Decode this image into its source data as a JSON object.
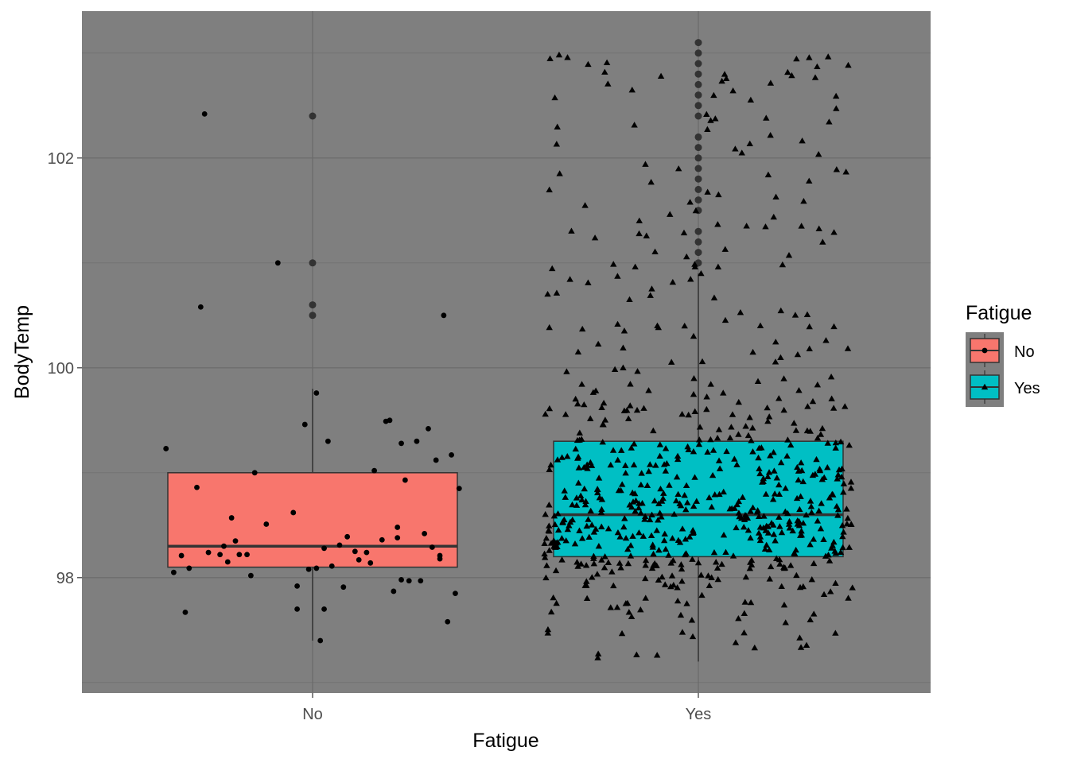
{
  "chart_data": {
    "type": "boxplot",
    "xlabel": "Fatigue",
    "ylabel": "BodyTemp",
    "categories": [
      "No",
      "Yes"
    ],
    "ylim": [
      96.9,
      103.4
    ],
    "yticks": [
      98,
      100,
      102
    ],
    "ytick_labels": [
      "98",
      "100",
      "102"
    ],
    "grid": true,
    "legend": {
      "title": "Fatigue",
      "position": "right",
      "entries": [
        {
          "label": "No",
          "fill": "#F8766D",
          "shape": "circle"
        },
        {
          "label": "Yes",
          "fill": "#00BFC4",
          "shape": "triangle"
        }
      ]
    },
    "colors": {
      "panel": "#7f7f7f",
      "grid_major": "#6a6a6a",
      "grid_minor": "#747474",
      "box_no": "#F8766D",
      "box_yes": "#00BFC4",
      "outline": "#333333",
      "points": "#000000"
    },
    "boxes": [
      {
        "category": "No",
        "lower_whisker": 97.4,
        "q1": 98.1,
        "median": 98.3,
        "q3": 99.0,
        "upper_whisker": 99.8,
        "outliers": [
          100.5,
          100.6,
          101.0,
          102.4
        ]
      },
      {
        "category": "Yes",
        "lower_whisker": 97.2,
        "q1": 98.2,
        "median": 98.6,
        "q3": 99.3,
        "upper_whisker": 100.9,
        "outliers": [
          101.0,
          101.1,
          101.2,
          101.3,
          101.5,
          101.6,
          101.7,
          101.8,
          101.9,
          102.0,
          102.1,
          102.2,
          102.4,
          102.5,
          102.6,
          102.7,
          102.8,
          102.9,
          103.0,
          103.1
        ]
      }
    ],
    "jitter_points": {
      "No": [
        [
          -0.38,
          99.23
        ],
        [
          -0.36,
          98.05
        ],
        [
          -0.34,
          98.21
        ],
        [
          -0.33,
          97.67
        ],
        [
          -0.32,
          98.09
        ],
        [
          -0.3,
          98.86
        ],
        [
          -0.29,
          100.58
        ],
        [
          -0.27,
          98.24
        ],
        [
          -0.24,
          98.22
        ],
        [
          -0.28,
          102.42
        ],
        [
          -0.23,
          98.3
        ],
        [
          -0.22,
          98.15
        ],
        [
          -0.21,
          98.57
        ],
        [
          -0.2,
          98.35
        ],
        [
          -0.19,
          98.22
        ],
        [
          -0.17,
          98.22
        ],
        [
          -0.16,
          98.02
        ],
        [
          -0.15,
          99.0
        ],
        [
          -0.12,
          98.51
        ],
        [
          -0.09,
          101.0
        ],
        [
          -0.05,
          98.62
        ],
        [
          -0.04,
          97.92
        ],
        [
          -0.04,
          97.7
        ],
        [
          -0.02,
          99.46
        ],
        [
          -0.01,
          98.08
        ],
        [
          0.01,
          99.76
        ],
        [
          0.01,
          98.09
        ],
        [
          0.02,
          97.4
        ],
        [
          0.03,
          98.28
        ],
        [
          0.03,
          97.7
        ],
        [
          0.04,
          99.3
        ],
        [
          0.05,
          98.11
        ],
        [
          0.07,
          98.31
        ],
        [
          0.08,
          97.91
        ],
        [
          0.09,
          98.39
        ],
        [
          0.11,
          98.25
        ],
        [
          0.12,
          98.17
        ],
        [
          0.14,
          98.24
        ],
        [
          0.15,
          98.14
        ],
        [
          0.16,
          99.02
        ],
        [
          0.18,
          98.36
        ],
        [
          0.19,
          99.49
        ],
        [
          0.2,
          99.5
        ],
        [
          0.21,
          97.87
        ],
        [
          0.22,
          98.48
        ],
        [
          0.22,
          98.38
        ],
        [
          0.23,
          97.98
        ],
        [
          0.23,
          99.28
        ],
        [
          0.24,
          98.93
        ],
        [
          0.25,
          97.97
        ],
        [
          0.27,
          99.3
        ],
        [
          0.28,
          97.97
        ],
        [
          0.29,
          98.42
        ],
        [
          0.3,
          99.42
        ],
        [
          0.31,
          98.29
        ],
        [
          0.32,
          99.12
        ],
        [
          0.33,
          98.21
        ],
        [
          0.34,
          100.5
        ],
        [
          0.35,
          97.58
        ],
        [
          0.36,
          99.17
        ],
        [
          0.37,
          97.85
        ],
        [
          0.38,
          98.85
        ],
        [
          0.33,
          98.18
        ]
      ]
    }
  }
}
